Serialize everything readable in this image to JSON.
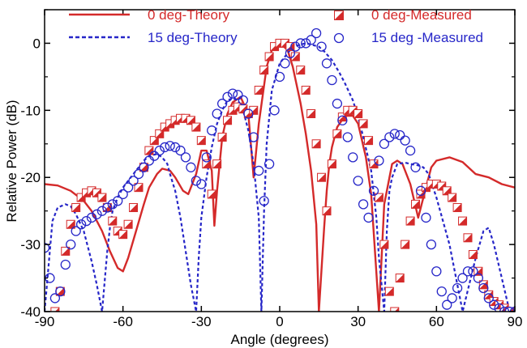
{
  "chart_data": {
    "type": "line",
    "xlabel": "Angle (degrees)",
    "ylabel": "Relative Power (dB)",
    "xlim": [
      -90,
      90
    ],
    "ylim": [
      -40,
      5
    ],
    "xticks": [
      -90,
      -60,
      -30,
      0,
      30,
      60,
      90
    ],
    "yticks": [
      0,
      -10,
      -20,
      -30,
      -40
    ],
    "xtick_labels": [
      "-90",
      "-60",
      "-30",
      "0",
      "30",
      "60",
      "90"
    ],
    "ytick_labels": [
      "0",
      "-10",
      "-20",
      "-30",
      "-40"
    ],
    "grid": false,
    "legend_position": "top",
    "colors": {
      "red": "#d42a2a",
      "blue": "#2626c8"
    },
    "series": [
      {
        "name": "0 deg-Theory",
        "style": "solid-line",
        "color": "#d42a2a",
        "x": [
          -90,
          -85,
          -80,
          -75,
          -72,
          -68,
          -65,
          -62,
          -60,
          -58,
          -55,
          -52,
          -50,
          -47,
          -45,
          -42,
          -40,
          -37,
          -35,
          -32,
          -30,
          -28,
          -26,
          -25,
          -24,
          -22,
          -20,
          -18,
          -15,
          -12,
          -10,
          -8,
          -5,
          -3,
          0,
          3,
          5,
          8,
          10,
          12,
          14,
          15,
          17,
          18,
          19,
          20,
          22,
          25,
          28,
          30,
          33,
          35,
          38,
          40,
          43,
          45,
          47,
          50,
          53,
          55,
          58,
          60,
          65,
          70,
          75,
          80,
          85,
          90
        ],
        "y": [
          -21.0,
          -21.2,
          -22.0,
          -23.5,
          -25.0,
          -28.0,
          -31.0,
          -33.5,
          -34.0,
          -32.0,
          -28.0,
          -24.0,
          -21.5,
          -19.5,
          -18.7,
          -19.0,
          -20.0,
          -22.0,
          -22.5,
          -19.5,
          -16.0,
          -16.0,
          -19.0,
          -27.2,
          -22.0,
          -14.0,
          -10.5,
          -8.8,
          -8.0,
          -10.5,
          -20.0,
          -12.0,
          -3.5,
          -1.0,
          0.0,
          -1.0,
          -3.5,
          -9.0,
          -13.5,
          -19.0,
          -27.0,
          -40.0,
          -27.5,
          -22.0,
          -18.0,
          -15.5,
          -12.5,
          -10.8,
          -10.8,
          -12.0,
          -17.0,
          -22.5,
          -40.0,
          -24.0,
          -18.0,
          -17.5,
          -18.0,
          -21.0,
          -26.0,
          -23.0,
          -18.5,
          -17.5,
          -17.0,
          -17.7,
          -19.5,
          -20.0,
          -21.0,
          -21.5
        ]
      },
      {
        "name": "15 deg-Theory",
        "style": "dashed-line",
        "color": "#2626c8",
        "x": [
          -90,
          -87,
          -85,
          -82,
          -80,
          -78,
          -75,
          -72,
          -70,
          -68,
          -66,
          -65,
          -64,
          -62,
          -60,
          -57,
          -55,
          -52,
          -50,
          -47,
          -45,
          -43,
          -42,
          -40,
          -38,
          -36,
          -34,
          -32,
          -31,
          -30,
          -28,
          -26,
          -24,
          -22,
          -20,
          -18,
          -16,
          -14,
          -12,
          -10,
          -8,
          -7,
          -6,
          -5,
          -3,
          0,
          3,
          5,
          8,
          10,
          13,
          15,
          17,
          20,
          23,
          25,
          28,
          30,
          32,
          35,
          37,
          38,
          40,
          41,
          42,
          43,
          45,
          48,
          50,
          53,
          55,
          57,
          60,
          65,
          70,
          75,
          78,
          80,
          82,
          85,
          88,
          90
        ],
        "y": [
          -40.0,
          -26.5,
          -24.5,
          -24.0,
          -24.3,
          -25.5,
          -28.0,
          -32.5,
          -36.0,
          -40.0,
          -31.0,
          -27.5,
          -25.0,
          -23.0,
          -21.5,
          -20.0,
          -19.0,
          -17.5,
          -16.8,
          -16.5,
          -17.0,
          -18.0,
          -19.5,
          -22.0,
          -26.0,
          -31.0,
          -36.0,
          -40.0,
          -32.0,
          -26.0,
          -20.0,
          -15.5,
          -12.0,
          -10.0,
          -8.5,
          -8.2,
          -8.5,
          -10.0,
          -13.0,
          -18.0,
          -26.0,
          -40.0,
          -25.0,
          -15.0,
          -7.0,
          -3.0,
          -1.5,
          -0.5,
          -0.2,
          0.0,
          -0.3,
          -0.5,
          -1.2,
          -2.5,
          -4.5,
          -6.0,
          -8.5,
          -11.0,
          -14.0,
          -19.0,
          -26.0,
          -32.0,
          -40.0,
          -28.0,
          -22.0,
          -20.0,
          -18.0,
          -17.8,
          -18.0,
          -18.2,
          -18.5,
          -19.5,
          -23.0,
          -30.0,
          -40.0,
          -32.0,
          -28.0,
          -27.5,
          -30.0,
          -35.0,
          -40.0,
          -40.0
        ]
      },
      {
        "name": "0 deg-Measured",
        "style": "half-filled-square-markers",
        "color": "#d42a2a",
        "x": [
          -86,
          -84,
          -82,
          -80,
          -78,
          -76,
          -74,
          -72,
          -70,
          -68,
          -66,
          -64,
          -62,
          -60,
          -58,
          -56,
          -54,
          -52,
          -50,
          -48,
          -46,
          -44,
          -42,
          -40,
          -38,
          -36,
          -34,
          -32,
          -30,
          -28,
          -26,
          -24,
          -22,
          -20,
          -18,
          -16,
          -14,
          -12,
          -10,
          -8,
          -6,
          -4,
          -2,
          0,
          2,
          4,
          6,
          8,
          10,
          12,
          14,
          16,
          18,
          20,
          22,
          24,
          26,
          28,
          30,
          32,
          34,
          36,
          38,
          40,
          42,
          44,
          46,
          48,
          50,
          52,
          54,
          56,
          58,
          60,
          62,
          64,
          66,
          68,
          70,
          72,
          74,
          76,
          78,
          80,
          82,
          84,
          86,
          88
        ],
        "y": [
          -40.0,
          -37.0,
          -31.0,
          -27.0,
          -24.5,
          -23.0,
          -22.3,
          -22.0,
          -22.3,
          -23.0,
          -24.5,
          -26.5,
          -28.0,
          -28.5,
          -27.0,
          -24.5,
          -21.5,
          -18.5,
          -16.0,
          -14.5,
          -13.5,
          -12.5,
          -12.0,
          -11.5,
          -11.2,
          -11.2,
          -11.5,
          -12.5,
          -14.5,
          -18.0,
          -22.5,
          -18.0,
          -14.0,
          -11.5,
          -10.0,
          -9.5,
          -9.8,
          -10.5,
          -10.0,
          -7.0,
          -4.0,
          -2.0,
          -0.5,
          0.0,
          0.0,
          -0.5,
          -2.0,
          -4.0,
          -7.0,
          -10.5,
          -15.0,
          -20.0,
          -25.0,
          -18.0,
          -13.5,
          -11.0,
          -10.0,
          -10.0,
          -10.5,
          -12.0,
          -14.5,
          -18.0,
          -23.0,
          -30.0,
          -37.0,
          -40.0,
          -35.0,
          -30.0,
          -26.5,
          -24.0,
          -22.5,
          -21.5,
          -21.0,
          -21.0,
          -21.3,
          -22.0,
          -23.0,
          -24.5,
          -26.5,
          -29.0,
          -31.5,
          -34.0,
          -36.0,
          -37.5,
          -38.5,
          -39.0,
          -39.5,
          -40.0
        ]
      },
      {
        "name": "15 deg -Measured",
        "style": "open-circle-markers",
        "color": "#2626c8",
        "x": [
          -90,
          -88,
          -86,
          -84,
          -82,
          -80,
          -78,
          -76,
          -74,
          -72,
          -70,
          -68,
          -66,
          -64,
          -62,
          -60,
          -58,
          -56,
          -54,
          -52,
          -50,
          -48,
          -46,
          -44,
          -42,
          -40,
          -38,
          -36,
          -34,
          -32,
          -30,
          -28,
          -26,
          -24,
          -22,
          -20,
          -18,
          -16,
          -14,
          -12,
          -10,
          -8,
          -6,
          -4,
          -2,
          0,
          2,
          4,
          6,
          8,
          10,
          12,
          14,
          16,
          18,
          20,
          22,
          24,
          26,
          28,
          30,
          32,
          34,
          36,
          38,
          40,
          42,
          44,
          46,
          48,
          50,
          52,
          54,
          56,
          58,
          60,
          62,
          64,
          66,
          68,
          70,
          72,
          74,
          76,
          78,
          80,
          82,
          84,
          86,
          88,
          90
        ],
        "y": [
          -30.5,
          -35.0,
          -38.0,
          -37.0,
          -33.0,
          -30.0,
          -28.0,
          -27.0,
          -26.5,
          -26.0,
          -25.5,
          -25.0,
          -24.5,
          -24.0,
          -23.5,
          -22.5,
          -21.5,
          -20.5,
          -19.5,
          -18.5,
          -17.5,
          -16.8,
          -16.0,
          -15.5,
          -15.3,
          -15.5,
          -16.0,
          -17.0,
          -18.5,
          -20.5,
          -21.0,
          -17.0,
          -13.0,
          -10.5,
          -9.0,
          -8.0,
          -7.5,
          -7.7,
          -8.5,
          -10.5,
          -14.0,
          -19.0,
          -23.5,
          -18.0,
          -10.0,
          -5.0,
          -3.0,
          -1.5,
          -0.5,
          0.0,
          0.0,
          0.5,
          1.5,
          -0.5,
          -3.0,
          -5.5,
          -9.0,
          -11.5,
          -14.0,
          -17.0,
          -20.5,
          -24.0,
          -26.0,
          -22.0,
          -17.5,
          -15.0,
          -14.0,
          -13.5,
          -13.7,
          -14.5,
          -16.0,
          -18.5,
          -22.0,
          -26.0,
          -30.0,
          -34.0,
          -37.0,
          -39.0,
          -38.0,
          -36.5,
          -35.0,
          -34.0,
          -34.0,
          -35.0,
          -36.5,
          -38.0,
          -39.0,
          -39.5,
          -40.0,
          -40.0,
          -40.0
        ]
      }
    ]
  }
}
